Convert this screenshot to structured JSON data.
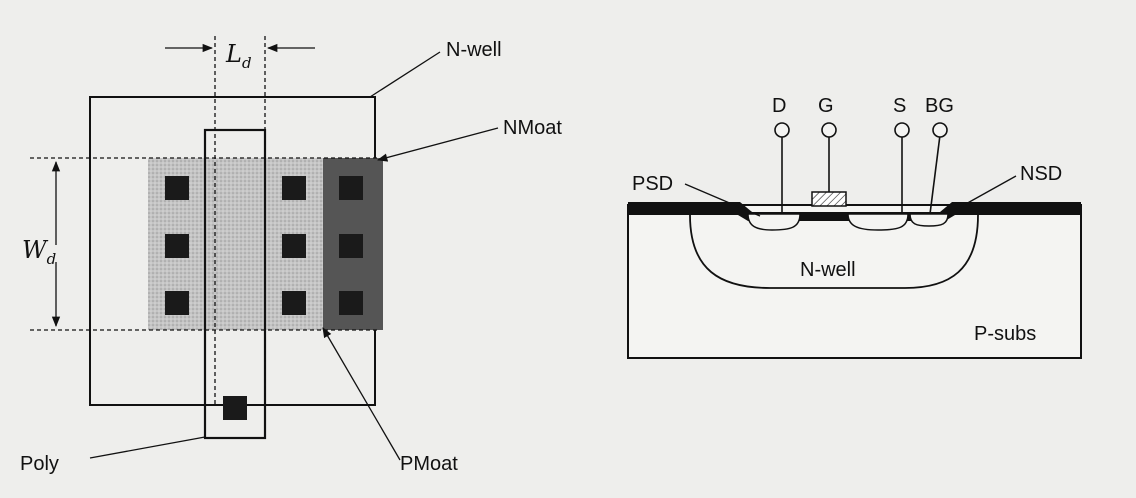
{
  "layout_view": {
    "ld_label": "L",
    "ld_sub": "d",
    "wd_label": "W",
    "wd_sub": "d",
    "nwell_label": "N-well",
    "nmoat_label": "NMoat",
    "poly_label": "Poly",
    "pmoat_label": "PMoat"
  },
  "cross_section": {
    "terminals": [
      "D",
      "G",
      "S",
      "BG"
    ],
    "psd_label": "PSD",
    "nsd_label": "NSD",
    "nwell_label": "N-well",
    "psubs_label": "P-subs"
  },
  "colors": {
    "background": "#eeeeec",
    "ink": "#111111",
    "pmoat_fill": "#bdbdbd",
    "nmoat_fill": "#555555",
    "contact_fill": "#1a1a1a"
  }
}
